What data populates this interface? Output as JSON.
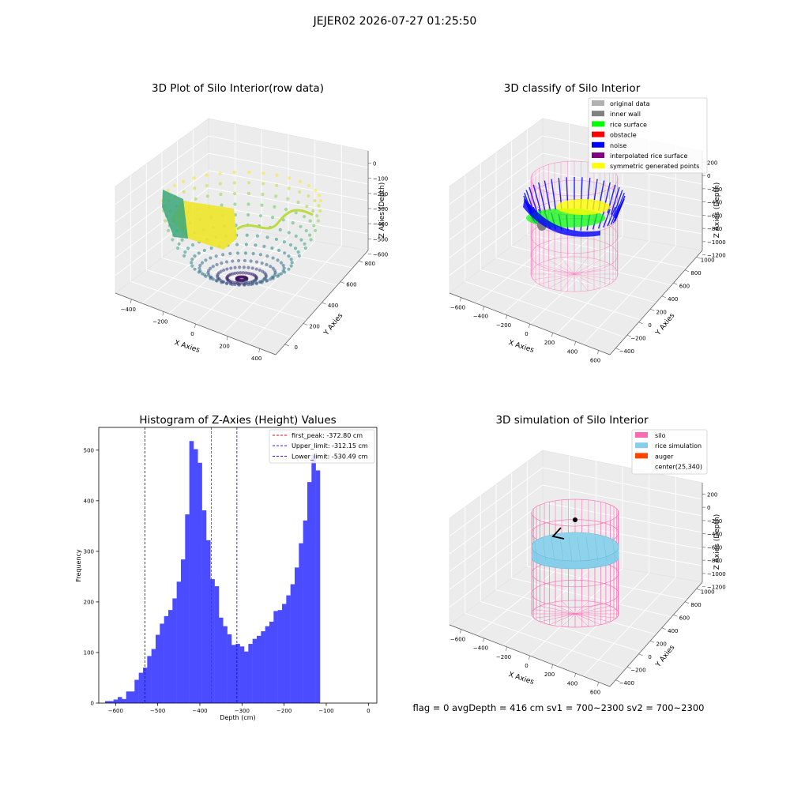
{
  "suptitle": "JEJER02 2026-07-27 01:25:50",
  "panels": {
    "raw": {
      "title": "3D Plot of Silo Interior(row data)",
      "xlabel": "X Axies",
      "ylabel": "Y Axies",
      "zlabel": "Z Axies (Depth)",
      "xticks": [
        "−400",
        "−200",
        "0",
        "200",
        "400"
      ],
      "yticks": [
        "0",
        "200",
        "400",
        "600",
        "800"
      ],
      "zticks": [
        "0",
        "−100",
        "−200",
        "−300",
        "−400",
        "−500",
        "−600"
      ],
      "colormap": [
        "#440154",
        "#3b528b",
        "#21918c",
        "#5ec962",
        "#fde725"
      ]
    },
    "classify": {
      "title": "3D classify of Silo Interior",
      "xlabel": "X Axies",
      "ylabel": "Y Axies",
      "zlabel": "Z Axies (Depth)",
      "xticks": [
        "−600",
        "−400",
        "−200",
        "0",
        "200",
        "400",
        "600"
      ],
      "yticks": [
        "−400",
        "−200",
        "0",
        "200",
        "400",
        "600",
        "800",
        "1000"
      ],
      "zticks": [
        "200",
        "0",
        "−200",
        "−400",
        "−600",
        "−800",
        "−1000",
        "−1200"
      ],
      "legend": [
        {
          "label": "original data",
          "color": "#b0b0b0"
        },
        {
          "label": "inner wall",
          "color": "#808080"
        },
        {
          "label": "rice surface",
          "color": "#00ff00"
        },
        {
          "label": "obstacle",
          "color": "#ff0000"
        },
        {
          "label": "noise",
          "color": "#0000ff"
        },
        {
          "label": "interpolated rice surface",
          "color": "#800080"
        },
        {
          "label": "symmetric generated points",
          "color": "#ffff00"
        }
      ]
    },
    "simulation": {
      "title": "3D simulation of Silo Interior",
      "xlabel": "X Axies",
      "ylabel": "Y Axies",
      "zlabel": "Z Axies (Depth)",
      "xticks": [
        "−600",
        "−400",
        "−200",
        "0",
        "200",
        "400",
        "600"
      ],
      "yticks": [
        "−400",
        "−200",
        "0",
        "200",
        "400",
        "600",
        "800",
        "1000"
      ],
      "zticks": [
        "200",
        "0",
        "−200",
        "−400",
        "−600",
        "−800",
        "−1000",
        "−1200"
      ],
      "legend": [
        {
          "label": "silo",
          "color": "#ff69b4"
        },
        {
          "label": "rice simulation",
          "color": "#87ceeb"
        },
        {
          "label": "auger",
          "color": "#ff4500"
        },
        {
          "label": "center(25,340)",
          "color": ""
        }
      ],
      "footer": "flag = 0     avgDepth = 416 cm  sv1 = 700~2300  sv2 = 700~2300"
    }
  },
  "chart_data": {
    "type": "bar",
    "title": "Histogram of Z-Axies (Height) Values",
    "xlabel": "Depth (cm)",
    "ylabel": "Frequency",
    "xlim": [
      -640,
      20
    ],
    "ylim": [
      0,
      545
    ],
    "bar_color": "#4b4bff",
    "xticks": [
      -600,
      -500,
      -400,
      -300,
      -200,
      -100,
      0
    ],
    "yticks": [
      0,
      100,
      200,
      300,
      400,
      500
    ],
    "bin_edges_start": -625,
    "bin_width": 10,
    "values": [
      4,
      4,
      7,
      12,
      8,
      23,
      23,
      46,
      60,
      70,
      93,
      107,
      135,
      157,
      172,
      184,
      207,
      240,
      284,
      373,
      518,
      502,
      475,
      381,
      322,
      245,
      231,
      169,
      152,
      136,
      115,
      117,
      112,
      102,
      117,
      127,
      133,
      142,
      152,
      161,
      182,
      184,
      196,
      213,
      235,
      268,
      316,
      361,
      437,
      490,
      460
    ],
    "lines": [
      {
        "label": "first_peak: -372.80 cm",
        "x": -372.8,
        "color": "#ff0000"
      },
      {
        "label": "Upper_limit: -312.15 cm",
        "x": -312.15,
        "color": "#0000ff"
      },
      {
        "label": "Lower_limit: -530.49 cm",
        "x": -530.49,
        "color": "#0000ff"
      }
    ]
  }
}
